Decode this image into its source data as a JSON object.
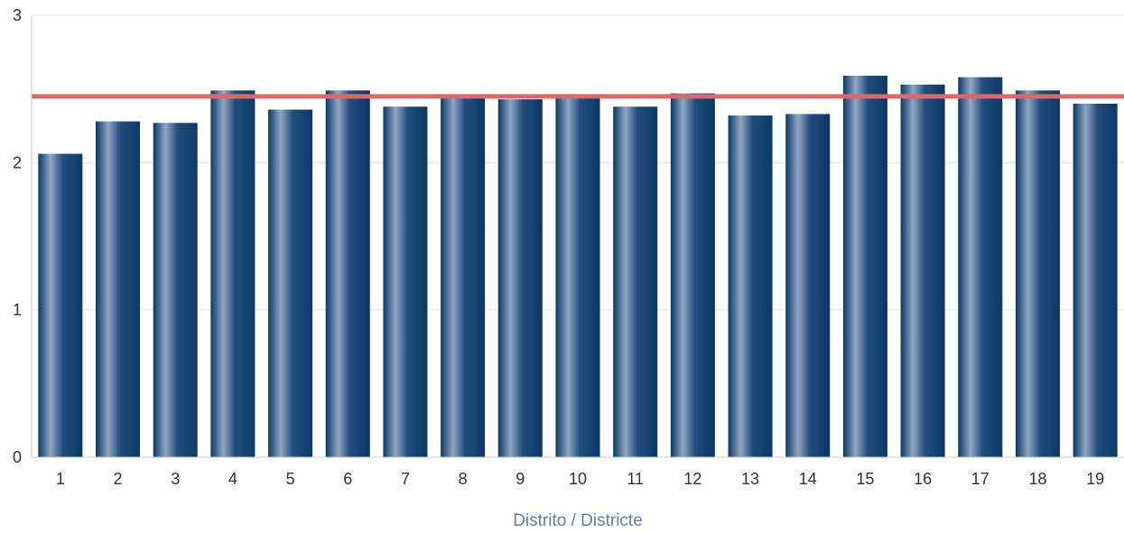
{
  "chart_data": {
    "type": "bar",
    "xlabel": "Distrito / Districte",
    "ylabel": "",
    "ylim": [
      0,
      3
    ],
    "yticks": [
      "0",
      "1",
      "2",
      "3"
    ],
    "grid": true,
    "categories": [
      "1",
      "2",
      "3",
      "4",
      "5",
      "6",
      "7",
      "8",
      "9",
      "10",
      "11",
      "12",
      "13",
      "14",
      "15",
      "16",
      "17",
      "18",
      "19"
    ],
    "values": [
      2.06,
      2.28,
      2.27,
      2.49,
      2.36,
      2.49,
      2.38,
      2.45,
      2.43,
      2.46,
      2.38,
      2.47,
      2.32,
      2.33,
      2.59,
      2.53,
      2.58,
      2.49,
      2.4
    ],
    "reference_line": 2.45,
    "colors": {
      "bar": "#0b3866",
      "bar_highlight": "#8fa6c2",
      "reference_line": "#d86a6a",
      "grid": "#e6e6e6",
      "axis": "#cccccc",
      "x_title": "#6a7ba6"
    }
  }
}
